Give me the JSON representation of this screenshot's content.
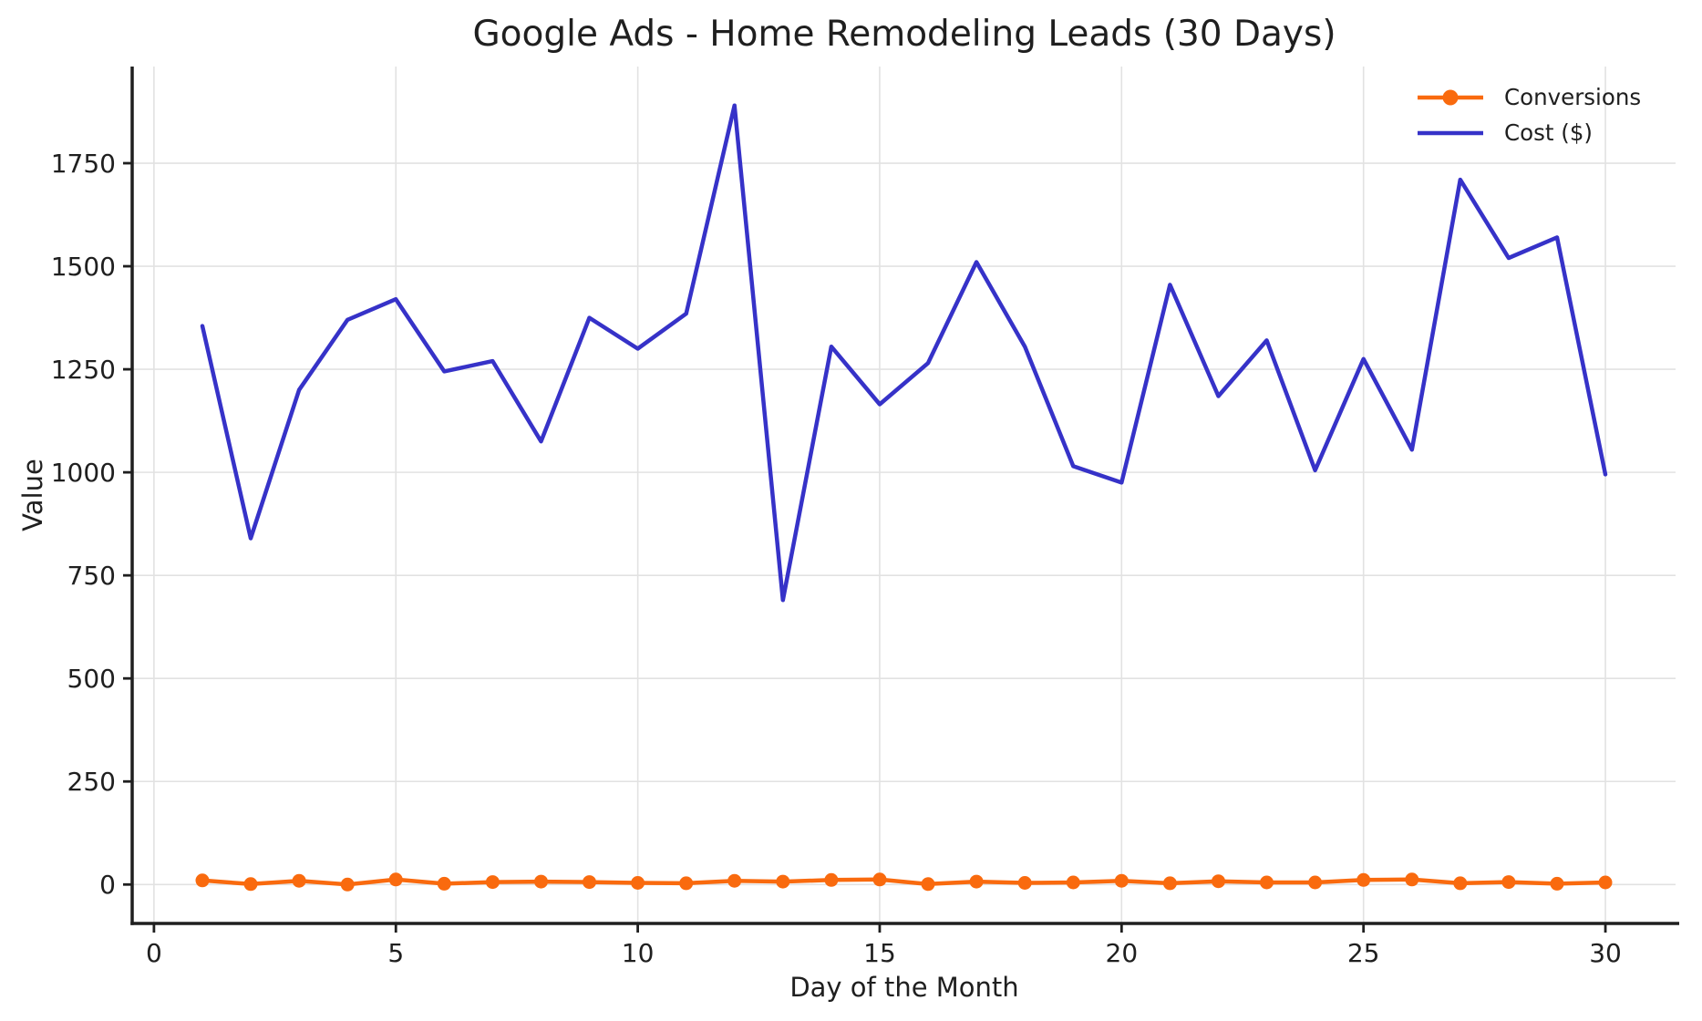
{
  "title": "Google Ads - Home Remodeling Leads (30 Days)",
  "legend": {
    "items": [
      {
        "label": "Conversions"
      },
      {
        "label": "Cost ($)"
      }
    ]
  },
  "chart_data": {
    "type": "line",
    "title": "Google Ads - Home Remodeling Leads (30 Days)",
    "xlabel": "Day of the Month",
    "ylabel": "Value",
    "x": [
      1,
      2,
      3,
      4,
      5,
      6,
      7,
      8,
      9,
      10,
      11,
      12,
      13,
      14,
      15,
      16,
      17,
      18,
      19,
      20,
      21,
      22,
      23,
      24,
      25,
      26,
      27,
      28,
      29,
      30
    ],
    "series": [
      {
        "name": "Conversions",
        "color": "#f96a0e",
        "marker": "circle",
        "marker_size": 7.5,
        "line_width": 4.5,
        "values": [
          10,
          1,
          9,
          0,
          12,
          2,
          6,
          7,
          6,
          4,
          3,
          9,
          7,
          11,
          12,
          1,
          7,
          4,
          5,
          9,
          3,
          8,
          5,
          5,
          11,
          12,
          3,
          6,
          2,
          5
        ]
      },
      {
        "name": "Cost ($)",
        "color": "#3632c8",
        "marker": "none",
        "line_width": 4.5,
        "values": [
          1355,
          840,
          1200,
          1370,
          1420,
          1245,
          1270,
          1075,
          1375,
          1300,
          1385,
          1890,
          690,
          1305,
          1165,
          1265,
          1510,
          1305,
          1015,
          975,
          1455,
          1185,
          1320,
          1005,
          1275,
          1055,
          1710,
          1520,
          1570,
          995
        ]
      }
    ],
    "xlim": [
      -0.45,
      31.45
    ],
    "ylim": [
      -94.5,
      1984.5
    ],
    "xticks": [
      0,
      5,
      10,
      15,
      20,
      25,
      30
    ],
    "yticks": [
      0,
      250,
      500,
      750,
      1000,
      1250,
      1500,
      1750
    ],
    "grid": true,
    "legend_position": "upper right",
    "colors": {
      "text": "#1f1f1f",
      "grid": "#e2e2e2",
      "spine": "#1f1f1f",
      "background": "#ffffff"
    }
  }
}
